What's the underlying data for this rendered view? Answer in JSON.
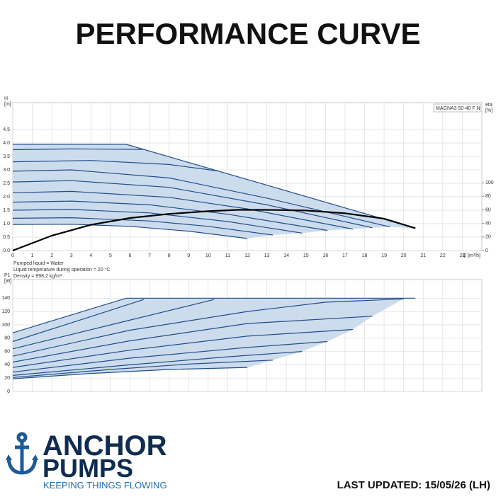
{
  "title": "PERFORMANCE CURVE",
  "notes": [
    "Pumped liquid = Water",
    "Liquid temperature during operation = 20 °C",
    "Density = 998.2 kg/m³"
  ],
  "logo": {
    "line1": "ANCHOR",
    "line2": "PUMPS",
    "tagline": "KEEPING THINGS FLOWING"
  },
  "updated": "LAST UPDATED: 15/05/26 (LH)",
  "chart_data": [
    {
      "type": "line",
      "label": "MAGNA3 50-40 F N",
      "ylabel": [
        "H",
        "[m]"
      ],
      "y2label": [
        "eta",
        "[%]"
      ],
      "xlabel": "Q [m³/h]",
      "xlim": [
        0,
        24
      ],
      "xticks": [
        0,
        1,
        2,
        3,
        4,
        5,
        6,
        7,
        8,
        9,
        10,
        11,
        12,
        13,
        14,
        15,
        16,
        17,
        18,
        19,
        20,
        21,
        22,
        23
      ],
      "show_xtick_labels": true,
      "ylim": [
        0,
        5.5
      ],
      "yticks": [
        {
          "value": 0,
          "label": "0.0"
        },
        0.5,
        {
          "value": 1,
          "label": "1.0"
        },
        1.5,
        {
          "value": 2,
          "label": "2.0"
        },
        2.5,
        {
          "value": 3,
          "label": "3.0"
        },
        3.5,
        {
          "value": 4,
          "label": "4.0"
        },
        4.5
      ],
      "y2lim": [
        0,
        218
      ],
      "y2ticks": [
        0,
        20,
        40,
        60,
        80,
        100
      ],
      "grid": true,
      "area_color": "#cddcec",
      "series": [
        {
          "color": "#1f4e8c",
          "x": [
            0,
            5.8,
            20.6
          ],
          "values": [
            3.95,
            3.95,
            0.83
          ]
        },
        {
          "color": "#1f4e8c",
          "x": [
            0,
            3,
            6.7
          ],
          "values": [
            3.75,
            3.78,
            3.76
          ]
        },
        {
          "color": "#1f4e8c",
          "x": [
            0,
            4,
            8,
            10.5
          ],
          "values": [
            3.3,
            3.35,
            3.2,
            2.96
          ]
        },
        {
          "color": "#1f4e8c",
          "x": [
            0,
            3,
            8,
            13,
            19.3
          ],
          "values": [
            2.95,
            3.0,
            2.7,
            1.95,
            0.88
          ]
        },
        {
          "color": "#1f4e8c",
          "x": [
            0,
            3,
            8,
            13,
            18.4
          ],
          "values": [
            2.55,
            2.6,
            2.35,
            1.7,
            0.85
          ]
        },
        {
          "color": "#1f4e8c",
          "x": [
            0,
            3,
            8,
            12,
            17.4
          ],
          "values": [
            2.15,
            2.2,
            1.98,
            1.55,
            0.8
          ]
        },
        {
          "color": "#1f4e8c",
          "x": [
            0,
            3,
            7,
            11,
            16.1
          ],
          "values": [
            1.8,
            1.84,
            1.7,
            1.35,
            0.75
          ]
        },
        {
          "color": "#1f4e8c",
          "x": [
            0,
            3,
            7,
            11,
            14.8
          ],
          "values": [
            1.5,
            1.53,
            1.4,
            1.08,
            0.65
          ]
        },
        {
          "color": "#1f4e8c",
          "x": [
            0,
            3,
            7,
            10,
            13.3
          ],
          "values": [
            1.2,
            1.22,
            1.1,
            0.9,
            0.58
          ]
        },
        {
          "color": "#1f4e8c",
          "x": [
            0,
            3,
            6,
            9,
            12
          ],
          "values": [
            0.97,
            0.98,
            0.9,
            0.72,
            0.45
          ]
        },
        {
          "color": "#000000",
          "axis": "y2",
          "x": [
            0,
            2,
            4,
            6,
            8,
            10,
            11.5,
            13,
            15,
            17,
            19,
            20.6
          ],
          "values": [
            0,
            22,
            38,
            48,
            54,
            58,
            60,
            60,
            59,
            55,
            47,
            33
          ]
        }
      ]
    },
    {
      "type": "line",
      "ylabel": [
        "P1",
        "[W]"
      ],
      "xlim": [
        0,
        24
      ],
      "xticks": [
        0,
        1,
        2,
        3,
        4,
        5,
        6,
        7,
        8,
        9,
        10,
        11,
        12,
        13,
        14,
        15,
        16,
        17,
        18,
        19,
        20,
        21,
        22,
        23
      ],
      "show_xtick_labels": false,
      "ylim": [
        0,
        168
      ],
      "yticks": [
        0,
        20,
        40,
        60,
        80,
        100,
        120,
        140
      ],
      "grid": true,
      "area_color": "#cddcec",
      "series": [
        {
          "color": "#1f4e8c",
          "x": [
            0,
            5.8,
            20.6
          ],
          "values": [
            88,
            140,
            140
          ]
        },
        {
          "color": "#1f4e8c",
          "x": [
            0,
            3,
            6.7
          ],
          "values": [
            75,
            103,
            138
          ]
        },
        {
          "color": "#1f4e8c",
          "x": [
            0,
            5,
            10.3
          ],
          "values": [
            64,
            100,
            138
          ]
        },
        {
          "color": "#1f4e8c",
          "x": [
            0,
            6,
            12,
            16,
            20
          ],
          "values": [
            53,
            92,
            120,
            134,
            139
          ]
        },
        {
          "color": "#1f4e8c",
          "x": [
            0,
            6,
            12,
            18.4
          ],
          "values": [
            44,
            76,
            102,
            113
          ]
        },
        {
          "color": "#1f4e8c",
          "x": [
            0,
            6,
            12,
            17.4
          ],
          "values": [
            36,
            62,
            83,
            93
          ]
        },
        {
          "color": "#1f4e8c",
          "x": [
            0,
            6,
            12,
            16.1
          ],
          "values": [
            29,
            50,
            66,
            75
          ]
        },
        {
          "color": "#1f4e8c",
          "x": [
            0,
            6,
            11,
            14.8
          ],
          "values": [
            24,
            40,
            52,
            60
          ]
        },
        {
          "color": "#1f4e8c",
          "x": [
            0,
            5,
            9,
            13.3
          ],
          "values": [
            21,
            33,
            41,
            47
          ]
        },
        {
          "color": "#1f4e8c",
          "x": [
            0,
            4,
            8,
            12
          ],
          "values": [
            19,
            27,
            33,
            36
          ]
        }
      ]
    }
  ]
}
